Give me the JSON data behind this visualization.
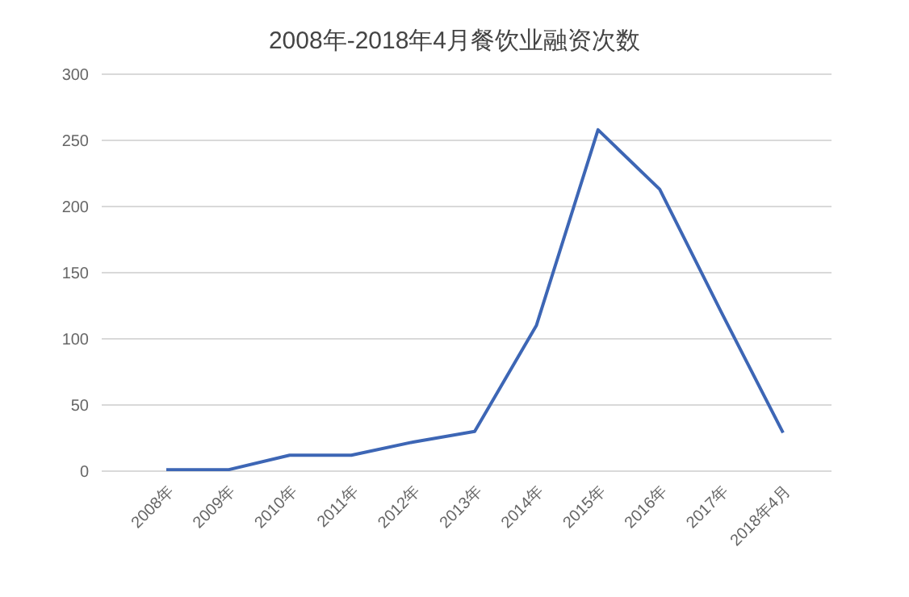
{
  "chart_data": {
    "type": "line",
    "title": "2008年-2018年4月餐饮业融资次数",
    "categories": [
      "2008年",
      "2009年",
      "2010年",
      "2011年",
      "2012年",
      "2013年",
      "2014年",
      "2015年",
      "2016年",
      "2017年",
      "2018年4月"
    ],
    "series": [
      {
        "color": "#3d66b5",
        "values": [
          1,
          1,
          12,
          12,
          22,
          30,
          110,
          258,
          213,
          120,
          29
        ]
      }
    ],
    "ylim": [
      0,
      300
    ],
    "yticks": [
      0,
      50,
      100,
      150,
      200,
      250,
      300
    ],
    "grid": "y",
    "marker": "none",
    "line_style": "solid"
  }
}
